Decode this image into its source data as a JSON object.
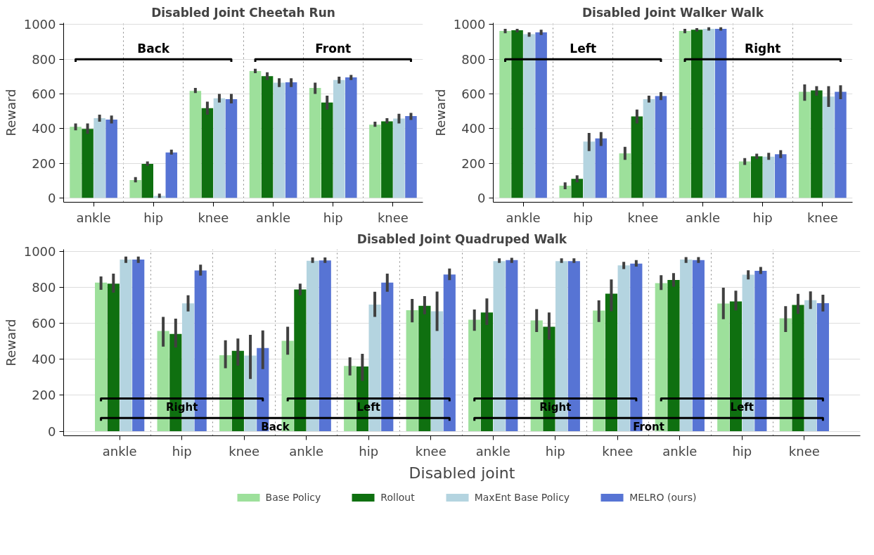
{
  "chart_data": [
    {
      "type": "bar",
      "title": "Disabled Joint Cheetah Run",
      "ylabel": "Reward",
      "categories": [
        "ankle",
        "hip",
        "knee",
        "ankle",
        "hip",
        "knee"
      ],
      "ylim": [
        -25,
        1010
      ],
      "yticks": [
        0,
        200,
        400,
        600,
        800,
        1000
      ],
      "grid": true,
      "legend": false,
      "annotations": [
        "Back",
        "Front"
      ],
      "series": [
        {
          "color": "#9de09b",
          "values": [
            410,
            103,
            617,
            732,
            635,
            422
          ],
          "errors": [
            [
              390,
              430
            ],
            [
              90,
              120
            ],
            [
              605,
              635
            ],
            [
              720,
              745
            ],
            [
              600,
              665
            ],
            [
              410,
              440
            ]
          ]
        },
        {
          "color": "#0f7010",
          "values": [
            398,
            196,
            518,
            703,
            550,
            442
          ],
          "errors": [
            [
              370,
              430
            ],
            [
              185,
              210
            ],
            [
              480,
              555
            ],
            [
              680,
              725
            ],
            [
              510,
              590
            ],
            [
              430,
              460
            ]
          ]
        },
        {
          "color": "#b4d4e0",
          "values": [
            460,
            12,
            575,
            665,
            680,
            458
          ],
          "errors": [
            [
              440,
              480
            ],
            [
              0,
              25
            ],
            [
              550,
              600
            ],
            [
              640,
              690
            ],
            [
              660,
              700
            ],
            [
              430,
              485
            ]
          ]
        },
        {
          "color": "#5774d4",
          "values": [
            452,
            262,
            570,
            667,
            695,
            472
          ],
          "errors": [
            [
              430,
              475
            ],
            [
              250,
              278
            ],
            [
              545,
              600
            ],
            [
              640,
              690
            ],
            [
              680,
              710
            ],
            [
              450,
              490
            ]
          ]
        }
      ]
    },
    {
      "type": "bar",
      "title": "Disabled Joint Walker Walk",
      "ylabel": "Reward",
      "categories": [
        "ankle",
        "hip",
        "knee",
        "ankle",
        "hip",
        "knee"
      ],
      "ylim": [
        -25,
        1010
      ],
      "yticks": [
        0,
        200,
        400,
        600,
        800,
        1000
      ],
      "grid": true,
      "legend": false,
      "annotations": [
        "Left",
        "Right"
      ],
      "series": [
        {
          "color": "#9de09b",
          "values": [
            963,
            70,
            257,
            963,
            210,
            612
          ],
          "errors": [
            [
              950,
              975
            ],
            [
              50,
              90
            ],
            [
              220,
              295
            ],
            [
              950,
              975
            ],
            [
              190,
              230
            ],
            [
              560,
              655
            ]
          ]
        },
        {
          "color": "#0f7010",
          "values": [
            967,
            110,
            470,
            970,
            240,
            620
          ],
          "errors": [
            [
              955,
              975
            ],
            [
              90,
              130
            ],
            [
              430,
              510
            ],
            [
              960,
              980
            ],
            [
              225,
              255
            ],
            [
              590,
              645
            ]
          ]
        },
        {
          "color": "#b4d4e0",
          "values": [
            945,
            325,
            570,
            975,
            238,
            585
          ],
          "errors": [
            [
              930,
              955
            ],
            [
              270,
              375
            ],
            [
              550,
              590
            ],
            [
              965,
              985
            ],
            [
              220,
              260
            ],
            [
              525,
              645
            ]
          ]
        },
        {
          "color": "#5774d4",
          "values": [
            955,
            343,
            588,
            975,
            252,
            612
          ],
          "errors": [
            [
              940,
              970
            ],
            [
              300,
              380
            ],
            [
              565,
              610
            ],
            [
              965,
              985
            ],
            [
              230,
              275
            ],
            [
              570,
              650
            ]
          ]
        }
      ]
    },
    {
      "type": "bar",
      "title": "Disabled Joint Quadruped Walk",
      "ylabel": "Reward",
      "xlabel": "Disabled joint",
      "categories": [
        "ankle",
        "hip",
        "knee",
        "ankle",
        "hip",
        "knee",
        "ankle",
        "hip",
        "knee",
        "ankle",
        "hip",
        "knee"
      ],
      "ylim": [
        -25,
        1010
      ],
      "yticks": [
        0,
        200,
        400,
        600,
        800,
        1000
      ],
      "grid": true,
      "legend": "bottom",
      "annotations": [
        "Right",
        "Left",
        "Right",
        "Left",
        "Back",
        "Front"
      ],
      "series": [
        {
          "name": "Base Policy",
          "color": "#9de09b",
          "values": [
            825,
            557,
            422,
            502,
            363,
            672,
            619,
            616,
            670,
            823,
            709,
            627
          ],
          "errors": [
            [
              785,
              860
            ],
            [
              470,
              635
            ],
            [
              350,
              505
            ],
            [
              425,
              580
            ],
            [
              310,
              410
            ],
            [
              605,
              735
            ],
            [
              558,
              676
            ],
            [
              551,
              678
            ],
            [
              607,
              727
            ],
            [
              784,
              866
            ],
            [
              622,
              797
            ],
            [
              551,
              695
            ]
          ]
        },
        {
          "name": "Rollout",
          "color": "#0f7010",
          "values": [
            820,
            540,
            447,
            787,
            360,
            697,
            659,
            580,
            764,
            840,
            721,
            701
          ],
          "errors": [
            [
              770,
              875
            ],
            [
              465,
              625
            ],
            [
              365,
              515
            ],
            [
              755,
              820
            ],
            [
              280,
              430
            ],
            [
              650,
              750
            ],
            [
              590,
              738
            ],
            [
              508,
              659
            ],
            [
              666,
              843
            ],
            [
              803,
              878
            ],
            [
              671,
              781
            ],
            [
              652,
              763
            ]
          ]
        },
        {
          "name": "MaxEnt Base Policy",
          "color": "#b4d4e0",
          "values": [
            953,
            710,
            420,
            947,
            703,
            666,
            945,
            945,
            921,
            953,
            869,
            728
          ],
          "errors": [
            [
              935,
              970
            ],
            [
              665,
              755
            ],
            [
              290,
              535
            ],
            [
              935,
              965
            ],
            [
              635,
              775
            ],
            [
              557,
              776
            ],
            [
              935,
              960
            ],
            [
              935,
              960
            ],
            [
              901,
              941
            ],
            [
              935,
              967
            ],
            [
              843,
              894
            ],
            [
              679,
              777
            ]
          ]
        },
        {
          "name": "MELRO (ours)",
          "color": "#5774d4",
          "values": [
            953,
            893,
            462,
            948,
            825,
            870,
            950,
            945,
            931,
            950,
            891,
            711
          ],
          "errors": [
            [
              935,
              970
            ],
            [
              865,
              925
            ],
            [
              345,
              560
            ],
            [
              935,
              965
            ],
            [
              775,
              875
            ],
            [
              839,
              904
            ],
            [
              935,
              963
            ],
            [
              935,
              960
            ],
            [
              914,
              950
            ],
            [
              935,
              967
            ],
            [
              873,
              912
            ],
            [
              665,
              758
            ]
          ]
        }
      ]
    }
  ]
}
